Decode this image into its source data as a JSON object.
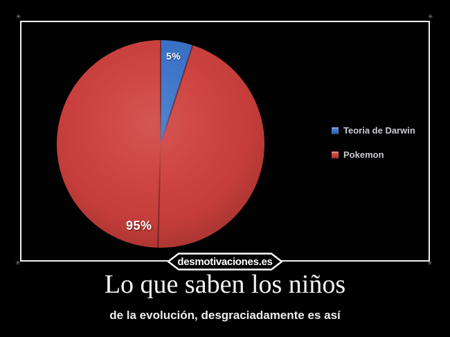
{
  "watermark": "desmotivaciones.es",
  "caption": {
    "title": "Lo que saben los niños",
    "subtitle": "de la evolución, desgraciadamente es así"
  },
  "chart_data": {
    "type": "pie",
    "title": "",
    "categories": [
      "Teoria de Darwin",
      "Pokemon"
    ],
    "values": [
      5,
      95
    ],
    "slices": [
      {
        "name": "Teoria de Darwin",
        "value": 5,
        "label_text": "5%",
        "color": "#3a72c8"
      },
      {
        "name": "Pokemon",
        "value": 95,
        "label_text": "95%",
        "color": "#cd403d"
      }
    ],
    "start_angle_deg": 0,
    "direction": "clockwise",
    "legend_position": "right",
    "background": "#000000",
    "label_color": "#ffffff",
    "legend_text_color": "#c9ccd2"
  }
}
